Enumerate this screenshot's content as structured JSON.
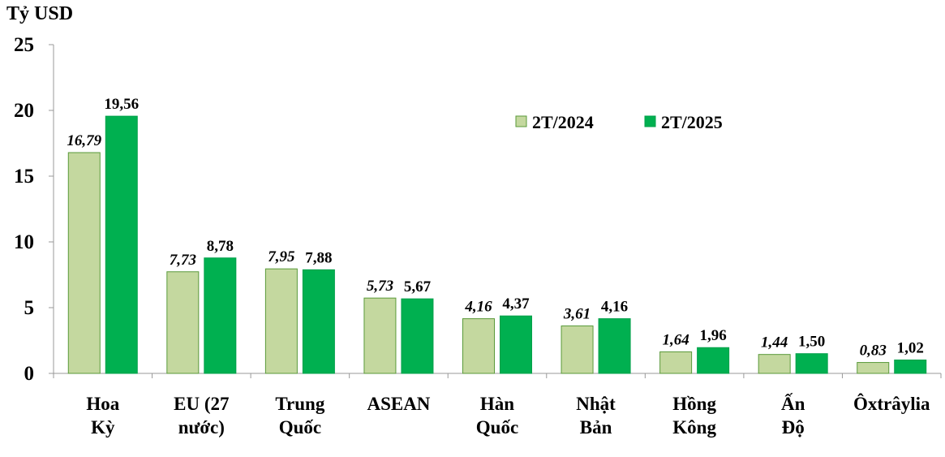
{
  "unit_label": "Tỷ USD",
  "chart_data": {
    "type": "bar",
    "ylabel": "Tỷ USD",
    "ylim": [
      0,
      25
    ],
    "yticks": [
      "0",
      "5",
      "10",
      "15",
      "20",
      "25"
    ],
    "ytick_values": [
      0,
      5,
      10,
      15,
      20,
      25
    ],
    "grid": false,
    "legend_position": "top-right",
    "categories": [
      [
        "Hoa",
        "Kỳ"
      ],
      [
        "EU (27",
        "nước)"
      ],
      [
        "Trung",
        "Quốc"
      ],
      [
        "ASEAN"
      ],
      [
        "Hàn",
        "Quốc"
      ],
      [
        "Nhật",
        "Bản"
      ],
      [
        "Hồng",
        "Kông"
      ],
      [
        "Ấn",
        "Độ"
      ],
      [
        "Ôxtrâylia"
      ]
    ],
    "series": [
      {
        "name": "2T/2024",
        "color": "#c4d89f",
        "label_style": "italic",
        "values": [
          16.79,
          7.73,
          7.95,
          5.73,
          4.16,
          3.61,
          1.64,
          1.44,
          0.83
        ],
        "labels": [
          "16,79",
          "7,73",
          "7,95",
          "5,73",
          "4,16",
          "3,61",
          "1,64",
          "1,44",
          "0,83"
        ]
      },
      {
        "name": "2T/2025",
        "color": "#00b050",
        "label_style": "normal",
        "values": [
          19.56,
          8.78,
          7.88,
          5.67,
          4.37,
          4.16,
          1.96,
          1.5,
          1.02
        ],
        "labels": [
          "19,56",
          "8,78",
          "7,88",
          "5,67",
          "4,37",
          "4,16",
          "1,96",
          "1,50",
          "1,02"
        ]
      }
    ]
  }
}
